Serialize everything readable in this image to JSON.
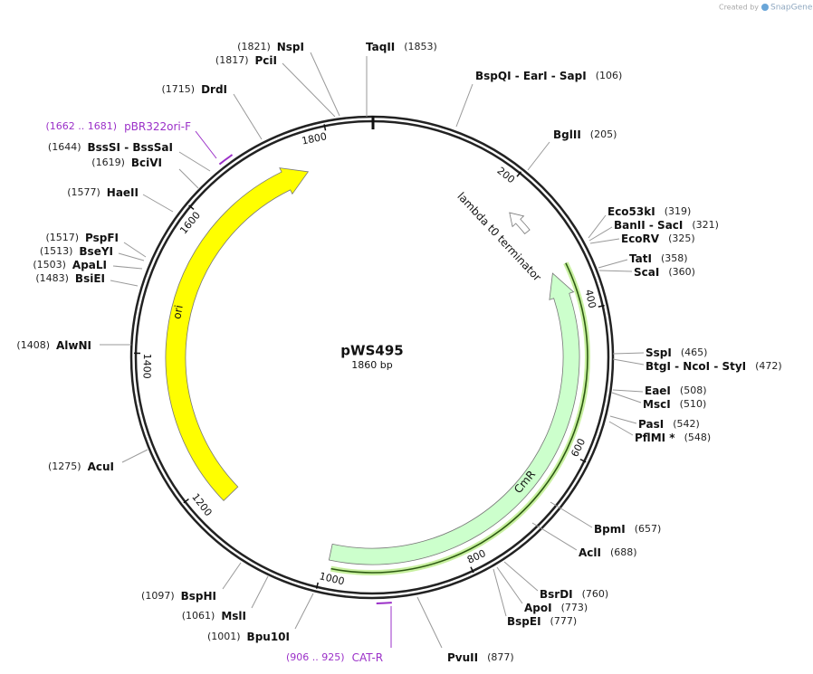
{
  "credit": {
    "prefix": "Created by",
    "brand": "SnapGene"
  },
  "map": {
    "name": "pWS495",
    "length": "1860 bp"
  },
  "ticks": [
    200,
    400,
    600,
    800,
    1000,
    1200,
    1400,
    1600,
    1800
  ],
  "features": [
    {
      "label": "ori"
    },
    {
      "label": "CmR"
    },
    {
      "label": "lambda t0 terminator"
    }
  ],
  "primers": [
    {
      "label": "pBR322ori-F",
      "range": "(1662 .. 1681)"
    },
    {
      "label": "CAT-R",
      "range": "(906 .. 925)"
    }
  ],
  "enzymes": [
    {
      "label": "TaqII",
      "position": "(1853)"
    },
    {
      "label": "BspQI  -  EarI  -  SapI",
      "position": "(106)"
    },
    {
      "label": "BglII",
      "position": "(205)"
    },
    {
      "label": "Eco53kI",
      "position": "(319)"
    },
    {
      "label": "BanII  -  SacI",
      "position": "(321)"
    },
    {
      "label": "EcoRV",
      "position": "(325)"
    },
    {
      "label": "TatI",
      "position": "(358)"
    },
    {
      "label": "ScaI",
      "position": "(360)"
    },
    {
      "label": "SspI",
      "position": "(465)"
    },
    {
      "label": "BtgI  -  NcoI  -  StyI",
      "position": "(472)"
    },
    {
      "label": "EaeI",
      "position": "(508)"
    },
    {
      "label": "MscI",
      "position": "(510)"
    },
    {
      "label": "PasI",
      "position": "(542)"
    },
    {
      "label": "PflMI *",
      "position": "(548)"
    },
    {
      "label": "BpmI",
      "position": "(657)"
    },
    {
      "label": "AclI",
      "position": "(688)"
    },
    {
      "label": "BsrDI",
      "position": "(760)"
    },
    {
      "label": "ApoI",
      "position": "(773)"
    },
    {
      "label": "BspEI",
      "position": "(777)"
    },
    {
      "label": "PvuII",
      "position": "(877)"
    },
    {
      "label": "NspI",
      "position": "(1821)"
    },
    {
      "label": "PciI",
      "position": "(1817)"
    },
    {
      "label": "DrdI",
      "position": "(1715)"
    },
    {
      "label": "BssSI  -  BssSaI",
      "position": "(1644)"
    },
    {
      "label": "BciVI",
      "position": "(1619)"
    },
    {
      "label": "HaeII",
      "position": "(1577)"
    },
    {
      "label": "PspFI",
      "position": "(1517)"
    },
    {
      "label": "BseYI",
      "position": "(1513)"
    },
    {
      "label": "ApaLI",
      "position": "(1503)"
    },
    {
      "label": "BsiEI",
      "position": "(1483)"
    },
    {
      "label": "AlwNI",
      "position": "(1408)"
    },
    {
      "label": "AcuI",
      "position": "(1275)"
    },
    {
      "label": "BspHI",
      "position": "(1097)"
    },
    {
      "label": "MslI",
      "position": "(1061)"
    },
    {
      "label": "Bpu10I",
      "position": "(1001)"
    }
  ]
}
